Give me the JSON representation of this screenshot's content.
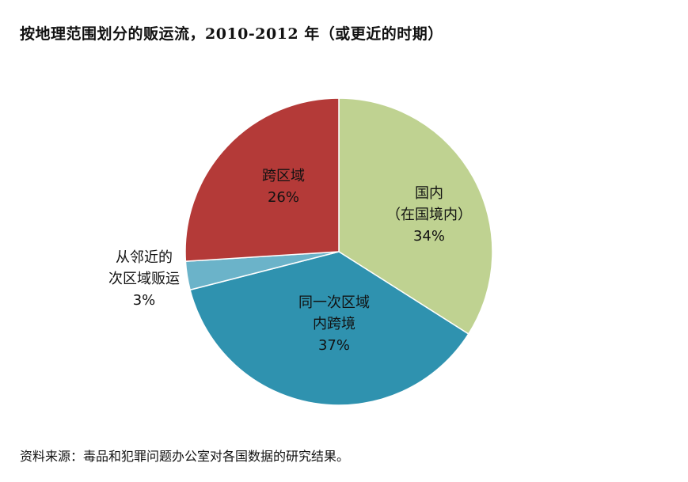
{
  "title": "按地理范围划分的贩运流，2010-2012 年（或更近的时期）",
  "source": "资料来源：毒品和犯罪问题办公室对各国数据的研究结果。",
  "chart_data": {
    "type": "pie",
    "title": "按地理范围划分的贩运流，2010-2012 年（或更近的时期）",
    "start": "12 o'clock, clockwise",
    "slices": [
      {
        "label_lines": [
          "国内",
          "（在国境内）"
        ],
        "value": 34,
        "value_label": "34%",
        "color": "#bfd291",
        "label_color": "#111111"
      },
      {
        "label_lines": [
          "同一次区域",
          "内跨境"
        ],
        "value": 37,
        "value_label": "37%",
        "color": "#2f92af",
        "label_color": "#111111"
      },
      {
        "label_lines": [
          "从邻近的",
          "次区域贩运"
        ],
        "value": 3,
        "value_label": "3%",
        "color": "#6bb3c9",
        "label_color": "#111111",
        "label_outside": true
      },
      {
        "label_lines": [
          "跨区域"
        ],
        "value": 26,
        "value_label": "26%",
        "color": "#b43a38",
        "label_color": "#111111"
      }
    ]
  }
}
